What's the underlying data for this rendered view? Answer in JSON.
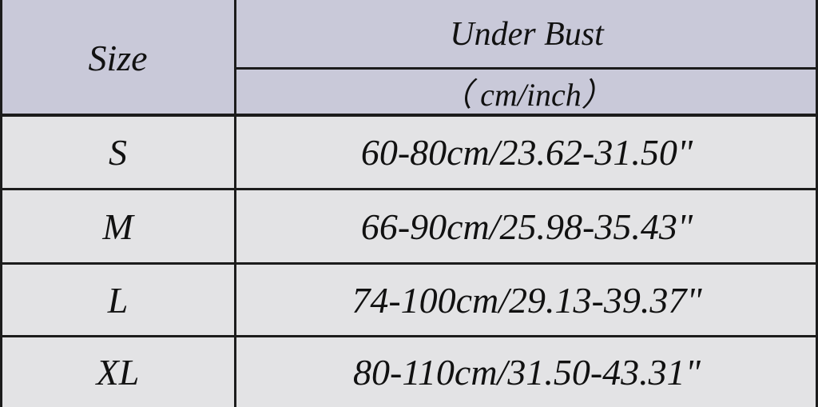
{
  "header": {
    "size_label": "Size",
    "measure_label": "Under Bust",
    "unit_label": "（ cm/inch）"
  },
  "rows": [
    {
      "size": "S",
      "value": "60-80cm/23.62-31.50\""
    },
    {
      "size": "M",
      "value": "66-90cm/25.98-35.43\""
    },
    {
      "size": "L",
      "value": "74-100cm/29.13-39.37\""
    },
    {
      "size": "XL",
      "value": "80-110cm/31.50-43.31\""
    }
  ],
  "colors": {
    "header_bg": "#c9c9d9",
    "row_bg": "#e3e3e5",
    "border": "#1c1c1c"
  }
}
